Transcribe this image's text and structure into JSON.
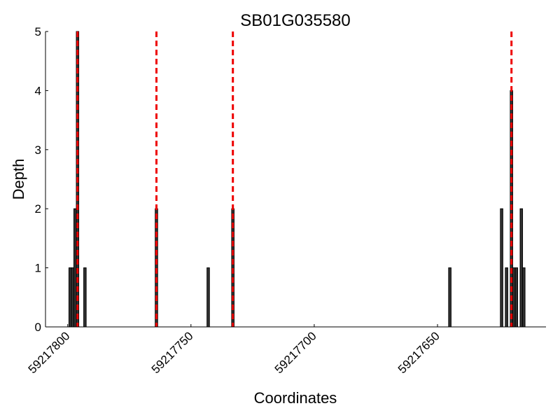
{
  "chart_data": {
    "type": "bar",
    "title": "SB01G035580",
    "x_label": "Coordinates",
    "y_label": "Depth",
    "x": [
      59217799,
      59217798,
      59217797,
      59217796,
      59217793,
      59217764,
      59217743,
      59217733,
      59217645,
      59217624,
      59217622,
      59217620,
      59217619,
      59217618,
      59217616,
      59217615
    ],
    "values": [
      1,
      1,
      2,
      5,
      1,
      2,
      1,
      2,
      1,
      2,
      1,
      4,
      1,
      1,
      2,
      1
    ],
    "color": "#333333",
    "edge_color": "#000000",
    "bar_width": 1,
    "vlines": [
      59217796,
      59217764,
      59217733,
      59217620
    ],
    "vline_color": "#ee0000",
    "xlim": [
      59217809,
      59217606
    ],
    "xticks": [
      59217800,
      59217750,
      59217700,
      59217650
    ],
    "ylim": [
      0,
      5
    ],
    "yticks": [
      0,
      1,
      2,
      3,
      4,
      5
    ],
    "grid": false
  }
}
